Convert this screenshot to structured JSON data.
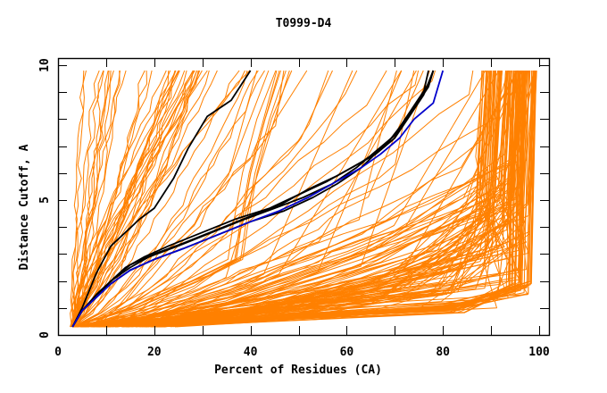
{
  "chart_data": {
    "type": "line",
    "title": "T0999-D4",
    "xlabel": "Percent of Residues (CA)",
    "ylabel": "Distance Cutoff, A",
    "xlim": [
      0,
      102
    ],
    "ylim": [
      0,
      10.3
    ],
    "x_ticks": [
      0,
      20,
      40,
      60,
      80,
      100
    ],
    "x_minor_ticks": [
      10,
      30,
      50,
      70,
      90
    ],
    "y_ticks": [
      0,
      5,
      10
    ],
    "y_minor_ticks": [
      1,
      2,
      3,
      4,
      6,
      7,
      8,
      9
    ],
    "grid": false,
    "legend": "none",
    "colors": {
      "other_models": "#ff8000",
      "highlight_models": "#000000",
      "reference_model": "#0000cc"
    },
    "highlight_series": [
      {
        "name": "black-a",
        "color": "#000000",
        "points": [
          [
            3,
            0.3
          ],
          [
            5,
            1.0
          ],
          [
            8,
            2.3
          ],
          [
            11,
            3.3
          ],
          [
            14,
            3.8
          ],
          [
            17,
            4.3
          ],
          [
            20,
            4.7
          ],
          [
            24,
            5.8
          ],
          [
            27,
            6.9
          ],
          [
            31,
            8.1
          ],
          [
            36,
            8.7
          ],
          [
            40,
            9.8
          ]
        ]
      },
      {
        "name": "black-b",
        "color": "#000000",
        "points": [
          [
            3,
            0.3
          ],
          [
            5,
            0.9
          ],
          [
            8,
            1.5
          ],
          [
            11,
            2.0
          ],
          [
            14,
            2.5
          ],
          [
            18,
            2.9
          ],
          [
            23,
            3.3
          ],
          [
            30,
            3.8
          ],
          [
            37,
            4.3
          ],
          [
            44,
            4.7
          ],
          [
            50,
            5.2
          ],
          [
            56,
            5.7
          ],
          [
            61,
            6.2
          ],
          [
            66,
            6.7
          ],
          [
            70,
            7.3
          ],
          [
            73,
            8.1
          ],
          [
            76,
            8.9
          ],
          [
            78,
            9.8
          ]
        ]
      },
      {
        "name": "black-c",
        "color": "#000000",
        "points": [
          [
            3,
            0.3
          ],
          [
            5,
            0.9
          ],
          [
            8,
            1.4
          ],
          [
            11,
            2.0
          ],
          [
            15,
            2.5
          ],
          [
            19,
            2.9
          ],
          [
            25,
            3.3
          ],
          [
            32,
            3.8
          ],
          [
            39,
            4.3
          ],
          [
            45,
            4.7
          ],
          [
            51,
            5.1
          ],
          [
            57,
            5.6
          ],
          [
            62,
            6.2
          ],
          [
            66,
            6.8
          ],
          [
            70,
            7.4
          ],
          [
            73,
            8.2
          ],
          [
            76,
            9.0
          ],
          [
            77,
            9.8
          ]
        ]
      },
      {
        "name": "black-d",
        "color": "#000000",
        "points": [
          [
            3,
            0.3
          ],
          [
            5,
            0.9
          ],
          [
            8,
            1.4
          ],
          [
            11,
            1.9
          ],
          [
            15,
            2.4
          ],
          [
            20,
            2.8
          ],
          [
            26,
            3.2
          ],
          [
            33,
            3.7
          ],
          [
            40,
            4.2
          ],
          [
            47,
            4.6
          ],
          [
            53,
            5.1
          ],
          [
            58,
            5.6
          ],
          [
            63,
            6.2
          ],
          [
            67,
            6.9
          ],
          [
            71,
            7.6
          ],
          [
            74,
            8.4
          ],
          [
            77,
            9.2
          ],
          [
            78,
            9.8
          ]
        ]
      },
      {
        "name": "black-e",
        "color": "#000000",
        "points": [
          [
            3,
            0.3
          ],
          [
            5,
            0.9
          ],
          [
            8,
            1.5
          ],
          [
            11,
            2.0
          ],
          [
            15,
            2.6
          ],
          [
            20,
            3.0
          ],
          [
            26,
            3.4
          ],
          [
            33,
            3.9
          ],
          [
            40,
            4.4
          ],
          [
            46,
            4.8
          ],
          [
            52,
            5.4
          ],
          [
            58,
            5.9
          ],
          [
            63,
            6.4
          ],
          [
            68,
            7.0
          ],
          [
            71,
            7.7
          ],
          [
            74,
            8.5
          ],
          [
            77,
            9.3
          ],
          [
            78,
            9.8
          ]
        ]
      },
      {
        "name": "blue-ref",
        "color": "#0000cc",
        "points": [
          [
            3,
            0.3
          ],
          [
            5,
            0.9
          ],
          [
            8,
            1.4
          ],
          [
            11,
            1.9
          ],
          [
            15,
            2.4
          ],
          [
            20,
            2.8
          ],
          [
            26,
            3.2
          ],
          [
            33,
            3.7
          ],
          [
            40,
            4.2
          ],
          [
            46,
            4.6
          ],
          [
            52,
            5.1
          ],
          [
            58,
            5.7
          ],
          [
            63,
            6.2
          ],
          [
            67,
            6.7
          ],
          [
            71,
            7.3
          ],
          [
            74,
            8.0
          ],
          [
            78,
            8.6
          ],
          [
            80,
            9.8
          ]
        ]
      }
    ],
    "other_series_description": "Roughly 150 orange model curves: a steep group near 5-45% reaching 9.8 A, a middle group 10-80%, and a dense flat group rising from 0.3 A near 3-25% to ~1 A near 85% then turning vertical at 95-100%."
  }
}
